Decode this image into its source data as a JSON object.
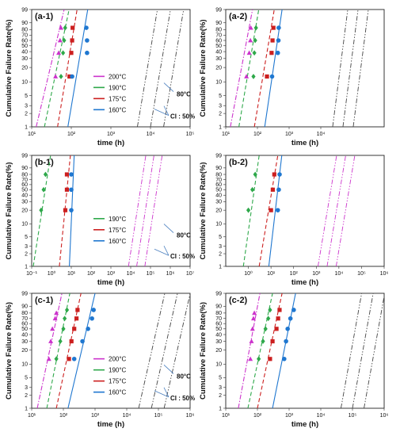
{
  "chart_data": [
    {
      "panel": "(a-1)",
      "type": "scatter",
      "xscale": "log",
      "yscale": "weibull",
      "xlim": [
        10,
        100000
      ],
      "xticks": [
        "10¹",
        "10²",
        "10³",
        "10⁴",
        "10⁵"
      ],
      "yticks": [
        "1",
        "2",
        "3",
        "5",
        "10",
        "20",
        "30",
        "40",
        "50",
        "60",
        "70",
        "80",
        "90",
        "99"
      ],
      "xlabel": "time (h)",
      "ylabel": "Cumulative Failure Rate(%)",
      "legend": [
        "200°C",
        "190°C",
        "175°C",
        "160°C"
      ],
      "annotations": [
        "80°C",
        "CI : 50%"
      ],
      "series": [
        {
          "name": "200°C",
          "color": "#cc33cc",
          "marker": "triangle",
          "points": [
            [
              40,
              13
            ],
            [
              48,
              38
            ],
            [
              52,
              60
            ],
            [
              55,
              83
            ]
          ],
          "line_x1": 13,
          "line_x99": 66
        },
        {
          "name": "190°C",
          "color": "#2ea84a",
          "marker": "diamond",
          "points": [
            [
              55,
              13
            ],
            [
              62,
              38
            ],
            [
              66,
              60
            ],
            [
              70,
              83
            ]
          ],
          "line_x1": 21,
          "line_x99": 88
        },
        {
          "name": "175°C",
          "color": "#cc1f1f",
          "marker": "square",
          "points": [
            [
              90,
              13
            ],
            [
              100,
              38
            ],
            [
              105,
              60
            ],
            [
              108,
              83
            ]
          ],
          "line_x1": 45,
          "line_x99": 140
        },
        {
          "name": "160°C",
          "color": "#1f77d0",
          "marker": "circle",
          "points": [
            [
              105,
              13
            ],
            [
              250,
              38
            ],
            [
              250,
              60
            ],
            [
              240,
              83
            ]
          ],
          "line_x1": 82,
          "line_x99": 260
        },
        {
          "name": "80°C",
          "color": "#444444",
          "marker": "none",
          "line_x1": 10000,
          "line_x99": 32000,
          "ci": true
        }
      ]
    },
    {
      "panel": "(a-2)",
      "type": "scatter",
      "xscale": "log",
      "yscale": "weibull",
      "xlim": [
        10,
        1000000
      ],
      "xticks": [
        "10¹",
        "10²",
        "10³",
        "10⁴"
      ],
      "yticks": [
        "1",
        "2",
        "3",
        "5",
        "10",
        "20",
        "30",
        "40",
        "50",
        "60",
        "70",
        "80",
        "90",
        "99"
      ],
      "xlabel": "time (h)",
      "ylabel": "Cumulative Failure Rate(%)",
      "series": [
        {
          "name": "200°C",
          "color": "#cc33cc",
          "marker": "triangle",
          "points": [
            [
              45,
              13
            ],
            [
              55,
              38
            ],
            [
              60,
              60
            ],
            [
              62,
              83
            ]
          ],
          "line_x1": 14,
          "line_x99": 70
        },
        {
          "name": "190°C",
          "color": "#2ea84a",
          "marker": "diamond",
          "points": [
            [
              75,
              13
            ],
            [
              80,
              38
            ],
            [
              85,
              60
            ],
            [
              90,
              83
            ]
          ],
          "line_x1": 26,
          "line_x99": 110
        },
        {
          "name": "175°C",
          "color": "#cc1f1f",
          "marker": "square",
          "points": [
            [
              200,
              13
            ],
            [
              280,
              38
            ],
            [
              300,
              60
            ],
            [
              320,
              83
            ]
          ],
          "line_x1": 80,
          "line_x99": 340
        },
        {
          "name": "160°C",
          "color": "#1f77d0",
          "marker": "circle",
          "points": [
            [
              290,
              13
            ],
            [
              440,
              38
            ],
            [
              460,
              60
            ],
            [
              470,
              83
            ]
          ],
          "line_x1": 170,
          "line_x99": 600
        },
        {
          "name": "80°C",
          "color": "#444444",
          "marker": "none",
          "line_x1": 50000,
          "line_x99": 150000,
          "ci": true
        }
      ]
    },
    {
      "panel": "(b-1)",
      "type": "scatter",
      "xscale": "log",
      "yscale": "weibull",
      "xlim": [
        0.1,
        10000000
      ],
      "xticks": [
        "10⁻¹",
        "10⁰",
        "10¹",
        "10²",
        "10³",
        "10⁴",
        "10⁵",
        "10⁶",
        "10⁷"
      ],
      "yticks": [
        "1",
        "2",
        "3",
        "5",
        "10",
        "20",
        "30",
        "40",
        "50",
        "60",
        "70",
        "80",
        "90",
        "99"
      ],
      "xlabel": "time (h)",
      "ylabel": "Cumulative Failure Rate(%)",
      "legend": [
        "190°C",
        "175°C",
        "160°C"
      ],
      "annotations": [
        "80°C",
        "CI : 50%"
      ],
      "series": [
        {
          "name": "190°C",
          "color": "#2ea84a",
          "marker": "diamond",
          "points": [
            [
              0.3,
              20
            ],
            [
              0.4,
              50
            ],
            [
              0.5,
              80
            ]
          ],
          "line_x1": 0.12,
          "line_x99": 0.9
        },
        {
          "name": "175°C",
          "color": "#cc1f1f",
          "marker": "square",
          "points": [
            [
              5,
              20
            ],
            [
              6,
              50
            ],
            [
              6,
              80
            ]
          ],
          "line_x1": 2.5,
          "line_x99": 9
        },
        {
          "name": "160°C",
          "color": "#1f77d0",
          "marker": "circle",
          "points": [
            [
              10,
              20
            ],
            [
              10,
              50
            ],
            [
              10,
              80
            ]
          ],
          "line_x1": 8,
          "line_x99": 14
        },
        {
          "name": "80°C",
          "color": "#cc33cc",
          "marker": "none",
          "line_x1": 20000,
          "line_x99": 150000,
          "ci": true
        }
      ]
    },
    {
      "panel": "(b-2)",
      "type": "scatter",
      "xscale": "log",
      "yscale": "weibull",
      "xlim": [
        0.1,
        1000000
      ],
      "xticks": [
        "10⁰",
        "10¹",
        "10²",
        "10³",
        "10⁴",
        "10⁵",
        "10⁶"
      ],
      "yticks": [
        "1",
        "2",
        "3",
        "5",
        "10",
        "20",
        "30",
        "40",
        "50",
        "60",
        "70",
        "80",
        "90",
        "99"
      ],
      "xlabel": "time (h)",
      "ylabel": "Cumulative Failure Rate(%)",
      "series": [
        {
          "name": "190°C",
          "color": "#2ea84a",
          "marker": "diamond",
          "points": [
            [
              1,
              20
            ],
            [
              1.5,
              50
            ],
            [
              2,
              80
            ]
          ],
          "line_x1": 0.6,
          "line_x99": 3
        },
        {
          "name": "175°C",
          "color": "#cc1f1f",
          "marker": "square",
          "points": [
            [
              10,
              20
            ],
            [
              12,
              50
            ],
            [
              14,
              80
            ]
          ],
          "line_x1": 3,
          "line_x99": 20
        },
        {
          "name": "160°C",
          "color": "#1f77d0",
          "marker": "circle",
          "points": [
            [
              20,
              20
            ],
            [
              22,
              50
            ],
            [
              24,
              80
            ]
          ],
          "line_x1": 8,
          "line_x99": 30
        },
        {
          "name": "80°C",
          "color": "#cc33cc",
          "marker": "none",
          "line_x1": 3000,
          "line_x99": 20000,
          "ci": true
        }
      ]
    },
    {
      "panel": "(c-1)",
      "type": "scatter",
      "xscale": "log",
      "yscale": "weibull",
      "xlim": [
        10,
        1000000
      ],
      "xticks": [
        "10¹",
        "10²",
        "10³",
        "10⁴",
        "10⁵",
        "10⁶"
      ],
      "yticks": [
        "1",
        "2",
        "3",
        "5",
        "10",
        "20",
        "30",
        "40",
        "50",
        "60",
        "70",
        "80",
        "90",
        "99"
      ],
      "xlabel": "time (h)",
      "ylabel": "Cumulative Failure Rate(%)",
      "legend": [
        "200°C",
        "190°C",
        "175°C",
        "160°C"
      ],
      "annotations": [
        "80°C",
        "CI : 50%"
      ],
      "series": [
        {
          "name": "200°C",
          "color": "#cc33cc",
          "marker": "triangle",
          "points": [
            [
              35,
              13
            ],
            [
              40,
              30
            ],
            [
              45,
              50
            ],
            [
              55,
              70
            ],
            [
              60,
              80
            ]
          ],
          "line_x1": 15,
          "line_x99": 90
        },
        {
          "name": "190°C",
          "color": "#2ea84a",
          "marker": "diamond",
          "points": [
            [
              60,
              13
            ],
            [
              80,
              30
            ],
            [
              100,
              50
            ],
            [
              110,
              70
            ],
            [
              130,
              85
            ]
          ],
          "line_x1": 30,
          "line_x99": 160
        },
        {
          "name": "175°C",
          "color": "#cc1f1f",
          "marker": "square",
          "points": [
            [
              150,
              13
            ],
            [
              180,
              30
            ],
            [
              220,
              50
            ],
            [
              260,
              70
            ],
            [
              280,
              85
            ]
          ],
          "line_x1": 60,
          "line_x99": 360
        },
        {
          "name": "160°C",
          "color": "#1f77d0",
          "marker": "circle",
          "points": [
            [
              220,
              13
            ],
            [
              400,
              30
            ],
            [
              600,
              50
            ],
            [
              800,
              70
            ],
            [
              900,
              85
            ]
          ],
          "line_x1": 140,
          "line_x99": 1000
        },
        {
          "name": "80°C",
          "color": "#444444",
          "marker": "none",
          "line_x1": 60000,
          "line_x99": 400000,
          "ci": true
        }
      ]
    },
    {
      "panel": "(c-2)",
      "type": "scatter",
      "xscale": "log",
      "yscale": "weibull",
      "xlim": [
        10,
        1000000
      ],
      "xticks": [
        "10¹",
        "10²",
        "10³",
        "10⁴",
        "10⁵",
        "10⁶"
      ],
      "yticks": [
        "1",
        "2",
        "3",
        "5",
        "10",
        "20",
        "30",
        "40",
        "50",
        "60",
        "70",
        "80",
        "90",
        "99"
      ],
      "xlabel": "time (h)",
      "ylabel": "Cumulative Failure Rate(%)",
      "series": [
        {
          "name": "200°C",
          "color": "#cc33cc",
          "marker": "triangle",
          "points": [
            [
              60,
              13
            ],
            [
              65,
              30
            ],
            [
              70,
              50
            ],
            [
              75,
              70
            ],
            [
              80,
              80
            ]
          ],
          "line_x1": 25,
          "line_x99": 120
        },
        {
          "name": "190°C",
          "color": "#2ea84a",
          "marker": "diamond",
          "points": [
            [
              110,
              13
            ],
            [
              150,
              30
            ],
            [
              180,
              50
            ],
            [
              220,
              70
            ],
            [
              250,
              85
            ]
          ],
          "line_x1": 50,
          "line_x99": 300
        },
        {
          "name": "175°C",
          "color": "#cc1f1f",
          "marker": "square",
          "points": [
            [
              250,
              13
            ],
            [
              300,
              30
            ],
            [
              400,
              50
            ],
            [
              450,
              70
            ],
            [
              500,
              85
            ]
          ],
          "line_x1": 100,
          "line_x99": 600
        },
        {
          "name": "160°C",
          "color": "#1f77d0",
          "marker": "circle",
          "points": [
            [
              700,
              13
            ],
            [
              800,
              30
            ],
            [
              900,
              50
            ],
            [
              1100,
              70
            ],
            [
              1400,
              85
            ]
          ],
          "line_x1": 300,
          "line_x99": 1600
        },
        {
          "name": "80°C",
          "color": "#444444",
          "marker": "none",
          "line_x1": 100000,
          "line_x99": 450000,
          "ci": true
        }
      ]
    }
  ]
}
